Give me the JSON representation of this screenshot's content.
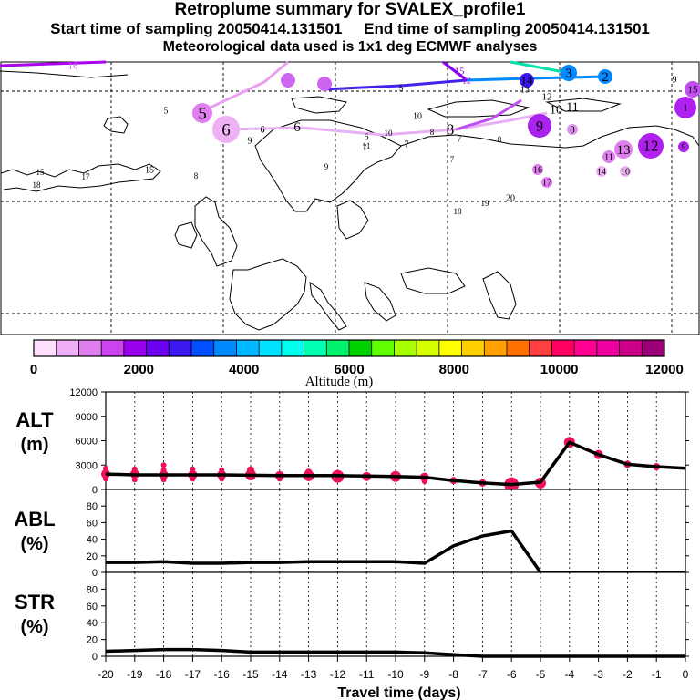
{
  "header": {
    "title": "Retroplume summary for SVALEX_profile1",
    "start_label": "Start time of sampling",
    "start_time": "20050414.131501",
    "end_label": "End time of sampling",
    "end_time": "20050414.131501",
    "met_note": "Meteorological data used is 1x1 deg ECMWF analyses"
  },
  "colorbar": {
    "label": "Altitude (m)",
    "ticks": [
      "0",
      "2000",
      "4000",
      "6000",
      "8000",
      "10000",
      "12000"
    ],
    "tick_values": [
      0,
      2000,
      4000,
      6000,
      8000,
      10000,
      12000
    ],
    "colors": [
      "#ffe0ff",
      "#f0b0f5",
      "#e080f0",
      "#cc44ee",
      "#9900ee",
      "#6a00ee",
      "#3a18ee",
      "#0050ff",
      "#0088ff",
      "#00b8ff",
      "#00e0ff",
      "#00ffee",
      "#00ffb0",
      "#00f070",
      "#00d000",
      "#60ff00",
      "#a8ff00",
      "#d8ff00",
      "#ffff00",
      "#ffd000",
      "#ffa000",
      "#ff7000",
      "#ff4040",
      "#ff0060",
      "#ff0090",
      "#ee00a0",
      "#cc0088",
      "#990077"
    ]
  },
  "map_labels": [
    {
      "t": "16",
      "s": 11,
      "c": "#cc66ee"
    },
    {
      "t": "13",
      "s": 10,
      "c": "#cc66ee"
    },
    {
      "t": "14",
      "s": 10,
      "c": "#cc66ee"
    },
    {
      "t": "15",
      "s": 11,
      "c": "#9900ee"
    },
    {
      "t": "12",
      "s": 10,
      "c": "#9900ee"
    },
    {
      "t": "5",
      "s": 10,
      "c": "#000000"
    },
    {
      "t": "14",
      "s": 13,
      "c": "#000000"
    },
    {
      "t": "3",
      "s": 15,
      "c": "#000000"
    },
    {
      "t": "2",
      "s": 15,
      "c": "#000000"
    },
    {
      "t": "9",
      "s": 10,
      "c": "#000000"
    },
    {
      "t": "15",
      "s": 11,
      "c": "#000000"
    },
    {
      "t": "13",
      "s": 10,
      "c": "#000000"
    },
    {
      "t": "12",
      "s": 11,
      "c": "#000000"
    },
    {
      "t": "11",
      "s": 14,
      "c": "#000000"
    },
    {
      "t": "10",
      "s": 14,
      "c": "#000000"
    },
    {
      "t": "9",
      "s": 16,
      "c": "#000000"
    },
    {
      "t": "8",
      "s": 11,
      "c": "#000000"
    },
    {
      "t": "8",
      "s": 17,
      "c": "#000000"
    },
    {
      "t": "7",
      "s": 10,
      "c": "#000000"
    },
    {
      "t": "7",
      "s": 10,
      "c": "#000000"
    },
    {
      "t": "6",
      "s": 10,
      "c": "#000000"
    },
    {
      "t": "6",
      "s": 15,
      "c": "#000000"
    },
    {
      "t": "6",
      "s": 19,
      "c": "#000000"
    },
    {
      "t": "5",
      "s": 19,
      "c": "#000000"
    },
    {
      "t": "5",
      "s": 10,
      "c": "#000000"
    },
    {
      "t": "6",
      "s": 10,
      "c": "#000000"
    },
    {
      "t": "9",
      "s": 10,
      "c": "#000000"
    },
    {
      "t": "10",
      "s": 10,
      "c": "#000000"
    },
    {
      "t": "12",
      "s": 17,
      "c": "#000000"
    },
    {
      "t": "11",
      "s": 10,
      "c": "#000000"
    },
    {
      "t": "13",
      "s": 15,
      "c": "#000000"
    },
    {
      "t": "14",
      "s": 10,
      "c": "#000000"
    },
    {
      "t": "10",
      "s": 10,
      "c": "#000000"
    },
    {
      "t": "16",
      "s": 10,
      "c": "#000000"
    },
    {
      "t": "17",
      "s": 10,
      "c": "#000000"
    },
    {
      "t": "20",
      "s": 10,
      "c": "#000000"
    },
    {
      "t": "19",
      "s": 9,
      "c": "#000000"
    },
    {
      "t": "18",
      "s": 9,
      "c": "#000000"
    },
    {
      "t": "10",
      "s": 9,
      "c": "#000000"
    },
    {
      "t": "11",
      "s": 9,
      "c": "#000000"
    },
    {
      "t": "17",
      "s": 9,
      "c": "#000000"
    },
    {
      "t": "15",
      "s": 9,
      "c": "#000000"
    },
    {
      "t": "18",
      "s": 9,
      "c": "#000000"
    },
    {
      "t": "8",
      "s": 9,
      "c": "#000000"
    },
    {
      "t": "9",
      "s": 9,
      "c": "#000000"
    },
    {
      "t": "7",
      "s": 9,
      "c": "#000000"
    },
    {
      "t": "7",
      "s": 9,
      "c": "#000000"
    },
    {
      "t": "8",
      "s": 9,
      "c": "#000000"
    },
    {
      "t": "8",
      "s": 9,
      "c": "#000000"
    },
    {
      "t": "1",
      "s": 10,
      "c": "#000000"
    },
    {
      "t": "6",
      "s": 9,
      "c": "#000000"
    },
    {
      "t": "9",
      "s": 9,
      "c": "#000000"
    },
    {
      "t": "15",
      "s": 10,
      "c": "#000000"
    }
  ],
  "chart_data": [
    {
      "type": "line",
      "panel": "alt",
      "ylabel": "ALT",
      "yunit": "(m)",
      "ylim": [
        0,
        12000
      ],
      "yticks": [
        0,
        3000,
        6000,
        9000,
        12000
      ],
      "x": [
        -20,
        -19,
        -18,
        -17,
        -16,
        -15,
        -14,
        -13,
        -12,
        -11,
        -10,
        -9,
        -8,
        -7,
        -6,
        -5,
        -4,
        -3,
        -2,
        -1,
        0
      ],
      "y": [
        1900,
        1800,
        1800,
        1800,
        1800,
        1750,
        1700,
        1700,
        1700,
        1650,
        1600,
        1500,
        1100,
        800,
        600,
        900,
        5800,
        4300,
        3100,
        2800,
        2600
      ],
      "clusters": [
        {
          "x": -20,
          "ys": [
            1900,
            1300,
            2600
          ],
          "r": 5
        },
        {
          "x": -19,
          "ys": [
            1900,
            1200,
            2500
          ],
          "r": 5
        },
        {
          "x": -18,
          "ys": [
            1800,
            1200,
            2400,
            3000
          ],
          "r": 5
        },
        {
          "x": -17,
          "ys": [
            1800,
            1300,
            2500
          ],
          "r": 5
        },
        {
          "x": -16,
          "ys": [
            1800,
            1300,
            2400
          ],
          "r": 5
        },
        {
          "x": -15,
          "ys": [
            1800,
            2400
          ],
          "r": 6
        },
        {
          "x": -14,
          "ys": [
            1700,
            1300
          ],
          "r": 5
        },
        {
          "x": -13,
          "ys": [
            1700,
            2100
          ],
          "r": 6
        },
        {
          "x": -12,
          "ys": [
            1600
          ],
          "r": 7
        },
        {
          "x": -11,
          "ys": [
            1600
          ],
          "r": 5
        },
        {
          "x": -10,
          "ys": [
            1600
          ],
          "r": 6
        },
        {
          "x": -9,
          "ys": [
            1500,
            1000
          ],
          "r": 5
        },
        {
          "x": -8,
          "ys": [
            1100
          ],
          "r": 4
        },
        {
          "x": -7,
          "ys": [
            800
          ],
          "r": 4
        },
        {
          "x": -6,
          "ys": [
            600
          ],
          "r": 8
        },
        {
          "x": -5,
          "ys": [
            800
          ],
          "r": 6
        },
        {
          "x": -4,
          "ys": [
            5800
          ],
          "r": 6
        },
        {
          "x": -3,
          "ys": [
            4300
          ],
          "r": 5
        },
        {
          "x": -2,
          "ys": [
            3100
          ],
          "r": 4
        },
        {
          "x": -1,
          "ys": [
            2800
          ],
          "r": 4
        }
      ]
    },
    {
      "type": "line",
      "panel": "abl",
      "ylabel": "ABL",
      "yunit": "(%)",
      "ylim": [
        0,
        100
      ],
      "yticks": [
        0,
        20,
        40,
        60,
        80
      ],
      "x": [
        -20,
        -19,
        -18,
        -17,
        -16,
        -15,
        -14,
        -13,
        -12,
        -11,
        -10,
        -9,
        -8,
        -7,
        -6,
        -5,
        -4,
        -3,
        -2,
        -1,
        0
      ],
      "y": [
        12,
        12,
        13,
        11,
        11,
        12,
        12,
        13,
        13,
        13,
        13,
        11,
        32,
        44,
        50,
        0,
        0,
        0,
        0,
        0,
        0
      ]
    },
    {
      "type": "line",
      "panel": "str",
      "ylabel": "STR",
      "yunit": "(%)",
      "ylim": [
        0,
        100
      ],
      "yticks": [
        0,
        20,
        40,
        60,
        80
      ],
      "x": [
        -20,
        -19,
        -18,
        -17,
        -16,
        -15,
        -14,
        -13,
        -12,
        -11,
        -10,
        -9,
        -8,
        -7,
        -6,
        -5,
        -4,
        -3,
        -2,
        -1,
        0
      ],
      "y": [
        6,
        7,
        8,
        8,
        7,
        5,
        5,
        5,
        5,
        5,
        5,
        4,
        2,
        0,
        0,
        0,
        0,
        0,
        0,
        0,
        0
      ]
    }
  ],
  "xaxis": {
    "title": "Travel time (days)",
    "ticks": [
      "-20",
      "-19",
      "-18",
      "-17",
      "-16",
      "-15",
      "-14",
      "-13",
      "-12",
      "-11",
      "-10",
      "-9",
      "-8",
      "-7",
      "-6",
      "-5",
      "-4",
      "-3",
      "-2",
      "-1",
      "0"
    ],
    "tick_values": [
      -20,
      -19,
      -18,
      -17,
      -16,
      -15,
      -14,
      -13,
      -12,
      -11,
      -10,
      -9,
      -8,
      -7,
      -6,
      -5,
      -4,
      -3,
      -2,
      -1,
      0
    ]
  },
  "colors": {
    "marker": "#ee1155",
    "line": "#000000"
  }
}
